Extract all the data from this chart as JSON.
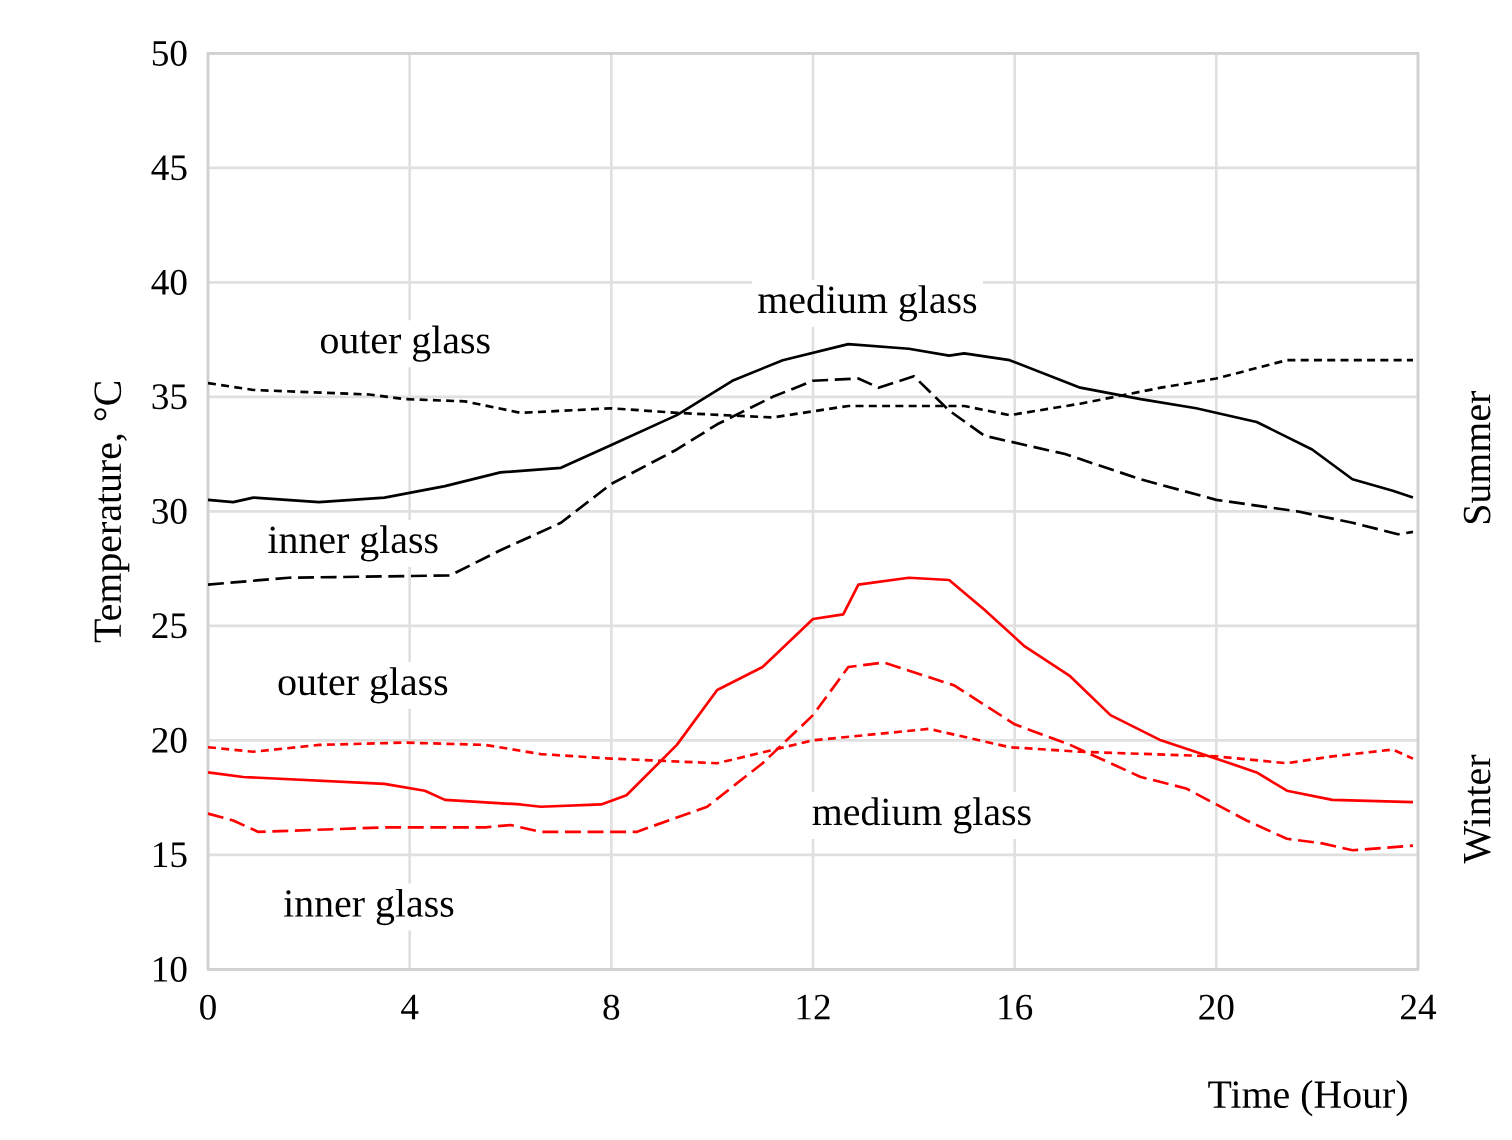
{
  "chart_data": {
    "type": "line",
    "xlabel": "Time (Hour)",
    "ylabel": "Temperature, °C",
    "xlim": [
      0,
      24
    ],
    "ylim": [
      10,
      50
    ],
    "xticks": [
      0,
      4,
      8,
      12,
      16,
      20,
      24
    ],
    "yticks": [
      10,
      15,
      20,
      25,
      30,
      35,
      40,
      45,
      50
    ],
    "grid": true,
    "marker": "none",
    "series": [
      {
        "color": "#000000",
        "line_style": "dotted",
        "x": [
          0,
          0.9,
          3.2,
          3.9,
          5.1,
          6.2,
          8.0,
          9.3,
          11.2,
          12.7,
          15.0,
          15.9,
          17.3,
          18.9,
          20.0,
          21.4,
          23.9
        ],
        "values": [
          35.6,
          35.3,
          35.1,
          34.9,
          34.8,
          34.3,
          34.5,
          34.3,
          34.1,
          34.6,
          34.6,
          34.2,
          34.7,
          35.4,
          35.8,
          36.6,
          36.6
        ]
      },
      {
        "color": "#000000",
        "line_style": "solid",
        "x": [
          0,
          0.5,
          0.9,
          2.2,
          3.5,
          4.7,
          5.8,
          7.0,
          8.0,
          9.3,
          10.4,
          11.4,
          12.7,
          13.9,
          14.7,
          15.0,
          15.9,
          17.3,
          18.5,
          19.6,
          20.8,
          21.9,
          22.7,
          23.5,
          23.9
        ],
        "values": [
          30.5,
          30.4,
          30.6,
          30.4,
          30.6,
          31.1,
          31.7,
          31.9,
          32.9,
          34.2,
          35.7,
          36.6,
          37.3,
          37.1,
          36.8,
          36.9,
          36.6,
          35.4,
          34.9,
          34.5,
          33.9,
          32.7,
          31.4,
          30.9,
          30.6
        ]
      },
      {
        "color": "#000000",
        "line_style": "dashed",
        "x": [
          0,
          1.6,
          4.8,
          5.8,
          7.0,
          8.0,
          9.3,
          10.1,
          11.2,
          12.0,
          12.9,
          13.3,
          14.0,
          14.7,
          15.4,
          17.0,
          18.5,
          20.0,
          21.6,
          22.7,
          23.6,
          23.9
        ],
        "values": [
          26.8,
          27.1,
          27.2,
          28.3,
          29.5,
          31.2,
          32.7,
          33.8,
          35.0,
          35.7,
          35.8,
          35.4,
          35.9,
          34.4,
          33.3,
          32.5,
          31.4,
          30.5,
          30.0,
          29.5,
          29.0,
          29.1
        ]
      },
      {
        "color": "#ff0000",
        "line_style": "dotted",
        "x": [
          0,
          0.9,
          2.2,
          3.9,
          5.5,
          6.6,
          8.0,
          10.1,
          12.0,
          14.3,
          15.9,
          17.3,
          20.0,
          21.4,
          22.3,
          23.5,
          23.9
        ],
        "values": [
          19.7,
          19.5,
          19.8,
          19.9,
          19.8,
          19.4,
          19.2,
          19.0,
          20.0,
          20.5,
          19.7,
          19.5,
          19.3,
          19.0,
          19.3,
          19.6,
          19.2
        ]
      },
      {
        "color": "#ff0000",
        "line_style": "solid",
        "x": [
          0,
          0.7,
          3.5,
          4.3,
          4.7,
          6.2,
          6.6,
          7.8,
          8.3,
          9.3,
          10.1,
          11.0,
          12.0,
          12.6,
          12.9,
          13.9,
          14.7,
          15.4,
          16.2,
          17.1,
          17.9,
          18.9,
          20.0,
          20.8,
          21.4,
          22.3,
          23.9
        ],
        "values": [
          18.6,
          18.4,
          18.1,
          17.8,
          17.4,
          17.2,
          17.1,
          17.2,
          17.6,
          19.8,
          22.2,
          23.2,
          25.3,
          25.5,
          26.8,
          27.1,
          27.0,
          25.7,
          24.1,
          22.8,
          21.1,
          20.0,
          19.2,
          18.6,
          17.8,
          17.4,
          17.3
        ]
      },
      {
        "color": "#ff0000",
        "line_style": "dashed",
        "x": [
          0,
          0.5,
          1.0,
          3.5,
          5.5,
          6.0,
          6.6,
          8.5,
          9.9,
          11.0,
          12.0,
          12.7,
          13.4,
          14.8,
          16.0,
          17.1,
          18.5,
          19.4,
          20.6,
          21.4,
          22.1,
          22.7,
          23.9
        ],
        "values": [
          16.8,
          16.5,
          16.0,
          16.2,
          16.2,
          16.3,
          16.0,
          16.0,
          17.1,
          19.0,
          21.1,
          23.2,
          23.4,
          22.4,
          20.7,
          19.8,
          18.4,
          17.9,
          16.5,
          15.7,
          15.5,
          15.2,
          15.4
        ]
      }
    ],
    "annotations": [
      "outer glass",
      "medium glass",
      "inner glass",
      "outer glass",
      "medium glass",
      "inner glass",
      "Summer",
      "Winter"
    ]
  }
}
